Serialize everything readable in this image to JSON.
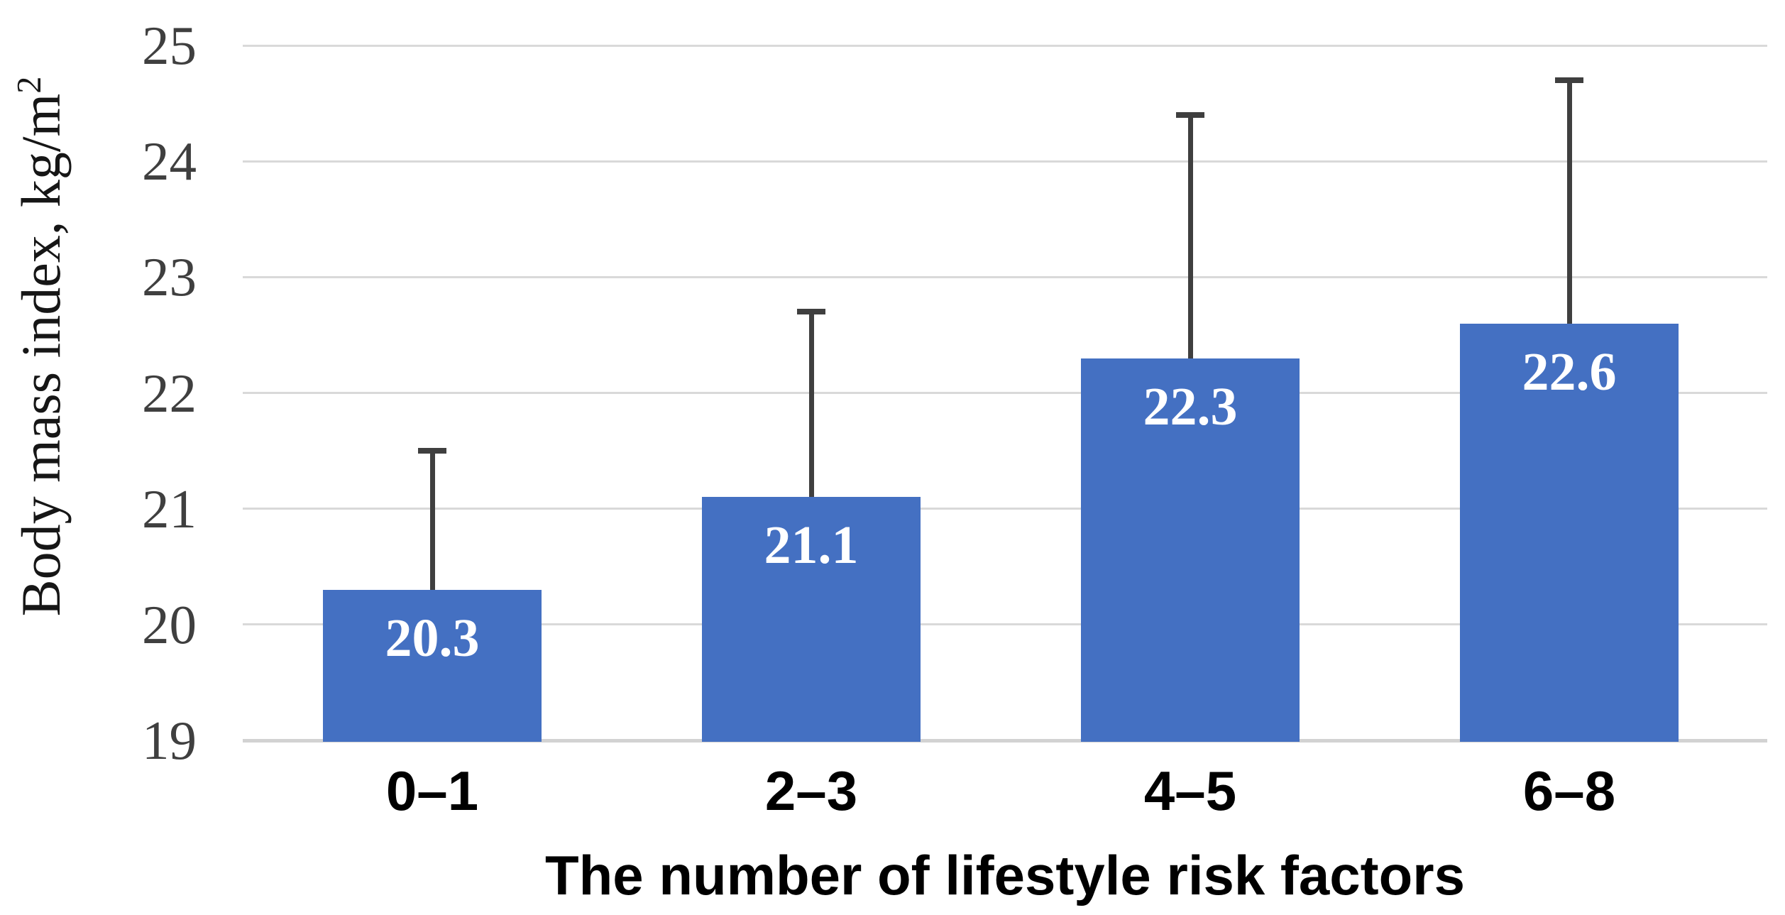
{
  "chart_data": {
    "type": "bar",
    "title": "",
    "xlabel": "The number of lifestyle risk factors",
    "ylabel": "Body mass index, kg/m²",
    "ylabel_main": "Body mass index, kg/m",
    "ylabel_sup": "2",
    "categories": [
      "0–1",
      "2–3",
      "4–5",
      "6–8"
    ],
    "values": [
      20.3,
      21.1,
      22.3,
      22.6
    ],
    "bar_labels": [
      "20.3",
      "21.1",
      "22.3",
      "22.6"
    ],
    "error_bar_tops": [
      21.5,
      22.7,
      24.4,
      24.7
    ],
    "ylim": [
      19,
      25
    ],
    "yticks": [
      25,
      24,
      23,
      22,
      21,
      20,
      19
    ],
    "grid": "horizontal",
    "legend": "none",
    "colors": {
      "bar": "#4470c2",
      "error_bar": "#3f3f3f",
      "gridline": "#d9d9d9",
      "axis_line": "#d2d2d2",
      "y_tick_text": "#3f3f3f",
      "bar_label_text": "#ffffff",
      "x_text": "#000000"
    }
  }
}
